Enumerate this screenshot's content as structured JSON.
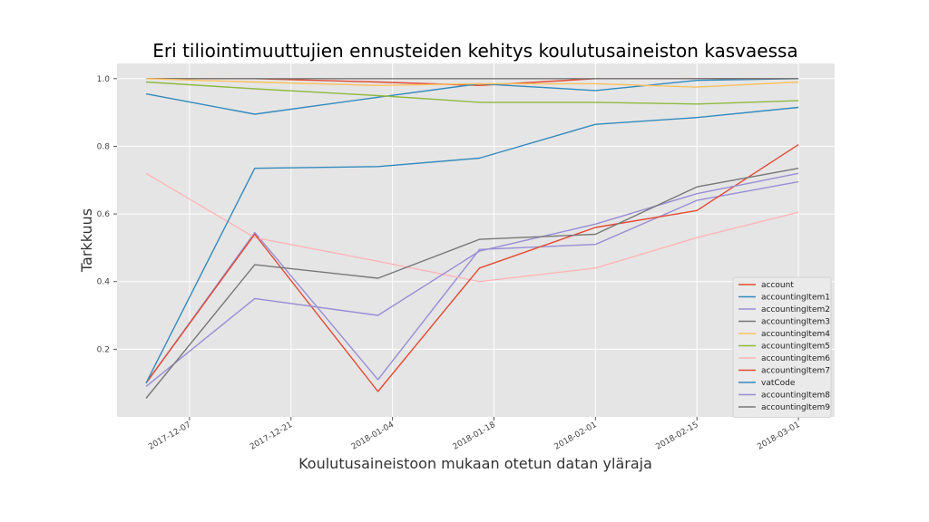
{
  "chart_data": {
    "type": "line",
    "title": "Eri tiliointimuuttujien ennusteiden kehitys koulutusaineiston kasvaessa",
    "xlabel": "Koulutusaineistoon mukaan otetun datan yläraja",
    "ylabel": "Tarkkuus",
    "x": [
      "2017-12-01",
      "2017-12-16",
      "2018-01-02",
      "2018-01-16",
      "2018-02-01",
      "2018-02-15",
      "2018-03-01"
    ],
    "xticks": [
      "2017-12-07",
      "2017-12-21",
      "2018-01-04",
      "2018-01-18",
      "2018-02-01",
      "2018-02-15",
      "2018-03-01"
    ],
    "yticks": [
      "0.2",
      "0.4",
      "0.6",
      "0.8",
      "1.0"
    ],
    "xlim": [
      "2017-11-27",
      "2018-03-06"
    ],
    "ylim": [
      0.0,
      1.045
    ],
    "grid": true,
    "legend_position": "lower-right",
    "series": [
      {
        "name": "account",
        "color": "#E24A33",
        "values": [
          1.0,
          1.0,
          0.99,
          0.98,
          1.0,
          1.0,
          1.0
        ]
      },
      {
        "name": "accountingItem1",
        "color": "#348ABD",
        "values": [
          0.955,
          0.895,
          0.945,
          0.985,
          0.965,
          0.995,
          1.0
        ]
      },
      {
        "name": "accountingItem2",
        "color": "#988ED5",
        "values": [
          0.1,
          0.545,
          0.11,
          0.495,
          0.51,
          0.64,
          0.695
        ]
      },
      {
        "name": "accountingItem3",
        "color": "#777777",
        "values": [
          1.0,
          1.0,
          1.0,
          1.0,
          1.0,
          1.0,
          1.0
        ]
      },
      {
        "name": "accountingItem4",
        "color": "#FBC15E",
        "values": [
          1.0,
          0.99,
          0.98,
          0.985,
          0.985,
          0.975,
          0.99
        ]
      },
      {
        "name": "accountingItem5",
        "color": "#8EBA42",
        "values": [
          0.99,
          0.97,
          0.95,
          0.93,
          0.93,
          0.925,
          0.935
        ]
      },
      {
        "name": "accountingItem6",
        "color": "#FFB5B8",
        "values": [
          0.72,
          0.53,
          0.46,
          0.4,
          0.44,
          0.53,
          0.605
        ]
      },
      {
        "name": "accountingItem7",
        "color": "#E24A33",
        "values": [
          0.1,
          0.54,
          0.075,
          0.44,
          0.56,
          0.61,
          0.805
        ]
      },
      {
        "name": "vatCode",
        "color": "#348ABD",
        "values": [
          0.1,
          0.735,
          0.74,
          0.765,
          0.865,
          0.885,
          0.915
        ]
      },
      {
        "name": "accountingItem8",
        "color": "#988ED5",
        "values": [
          0.09,
          0.35,
          0.3,
          0.49,
          0.57,
          0.66,
          0.72
        ]
      },
      {
        "name": "accountingItem9",
        "color": "#777777",
        "values": [
          0.055,
          0.45,
          0.41,
          0.525,
          0.54,
          0.68,
          0.735
        ]
      }
    ]
  },
  "style": {
    "figure_bg": "#ffffff",
    "plot_bg": "#E5E5E5",
    "grid_color": "#ffffff"
  }
}
